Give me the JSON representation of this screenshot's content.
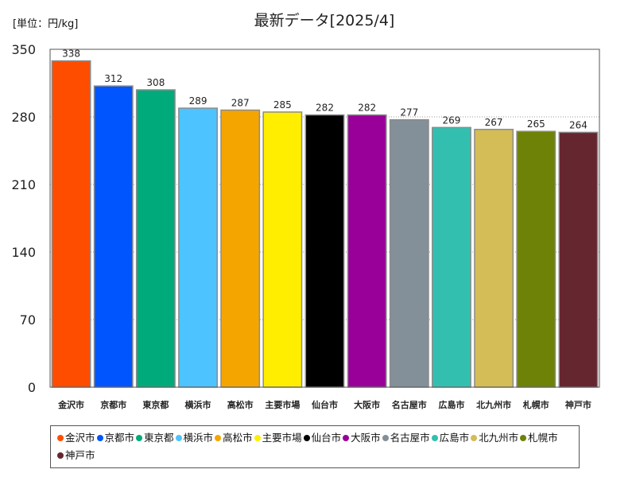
{
  "unit_label": "[単位：円/kg]",
  "chart_data": {
    "type": "bar",
    "title": "最新データ[2025/4]",
    "xlabel": "",
    "ylabel": "",
    "ylim": [
      0,
      350
    ],
    "yticks": [
      0,
      70,
      140,
      210,
      280,
      350
    ],
    "grid": true,
    "legend_placement": "bottom",
    "categories": [
      "金沢市",
      "京都市",
      "東京都",
      "横浜市",
      "高松市",
      "主要市場",
      "仙台市",
      "大阪市",
      "名古屋市",
      "広島市",
      "北九州市",
      "札幌市",
      "神戸市"
    ],
    "values": [
      338,
      312,
      308,
      289,
      287,
      285,
      282,
      282,
      277,
      269,
      267,
      265,
      264
    ],
    "data_labels": [
      "338",
      "312",
      "308",
      "289",
      "287",
      "285",
      "282",
      "282",
      "277",
      "269",
      "267",
      "265",
      "264"
    ],
    "ytick_labels": [
      "0",
      "70",
      "140",
      "210",
      "280",
      "350"
    ],
    "colors": [
      "#FF4D00",
      "#0055FF",
      "#00AA7A",
      "#4DC3FF",
      "#F5A500",
      "#FFEE00",
      "#000000",
      "#990099",
      "#838F99",
      "#33BFB0",
      "#D4BC57",
      "#6E8207",
      "#662630"
    ]
  }
}
